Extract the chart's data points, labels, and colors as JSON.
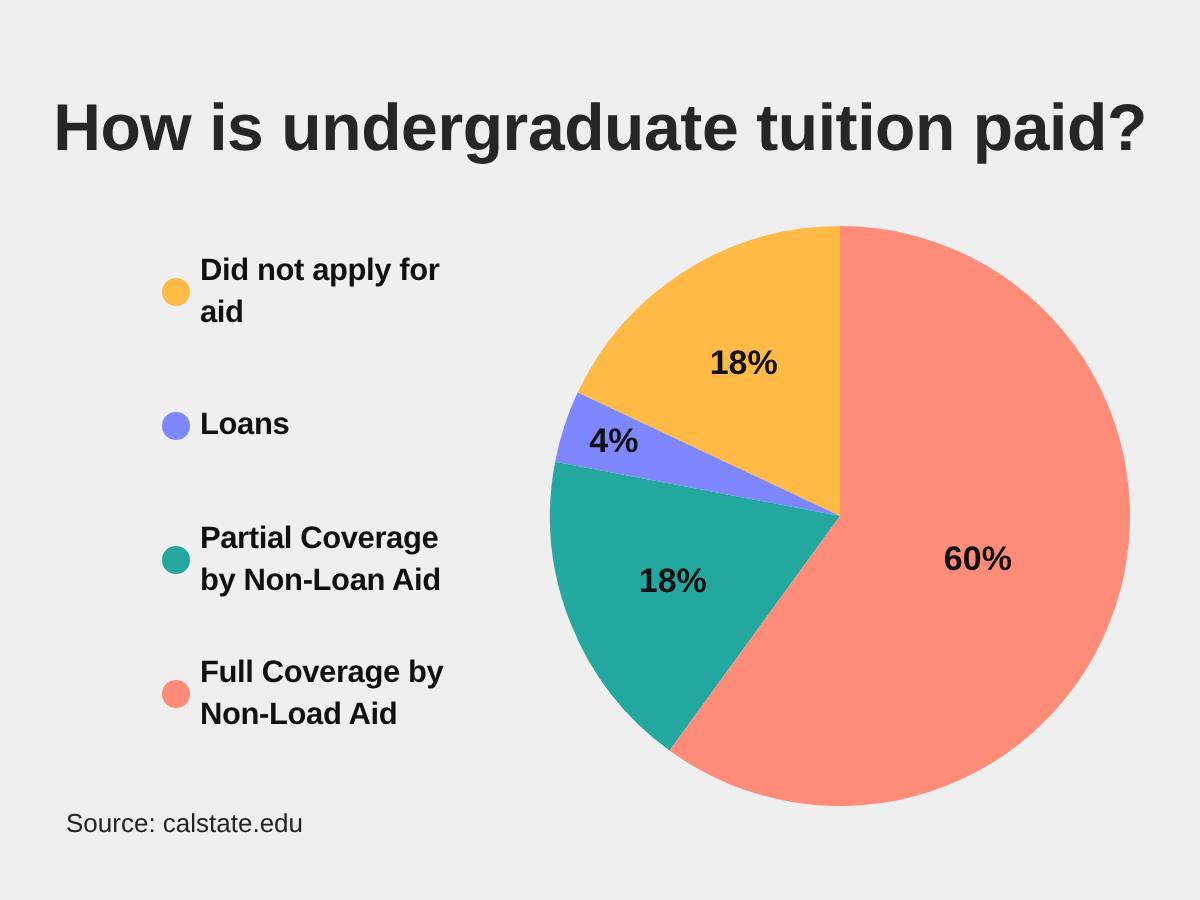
{
  "chart_data": {
    "type": "pie",
    "title": "How is undergraduate tuition paid?",
    "categories": [
      "Did not apply for aid",
      "Loans",
      "Partial Coverage by Non-Loan Aid",
      "Full Coverage by Non-Load Aid"
    ],
    "values": [
      18,
      4,
      18,
      60
    ],
    "colors": [
      "#ffbb45",
      "#7f87ff",
      "#22a89e",
      "#ff8c78"
    ],
    "value_labels": [
      "18%",
      "4%",
      "18%",
      "60%"
    ],
    "legend": "left",
    "annotations": [
      "Source: calstate.edu"
    ]
  }
}
